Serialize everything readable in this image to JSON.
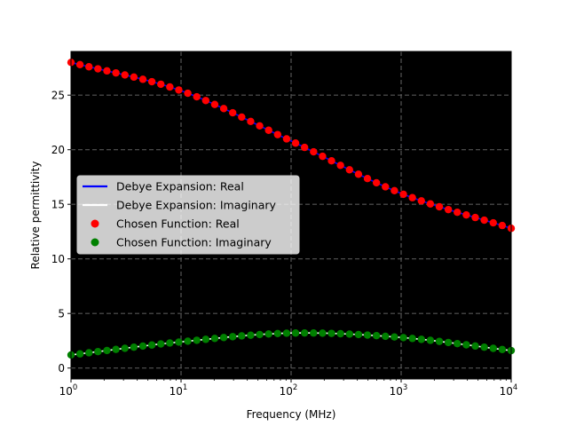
{
  "chart_data": {
    "type": "line",
    "xscale": "log",
    "xlabel": "Frequency (MHz)",
    "ylabel": "Relative permittivity",
    "xlim": [
      1,
      10000
    ],
    "ylim": [
      -1,
      29
    ],
    "plot_background": "#000000",
    "grid": true,
    "legend_position": "center-left",
    "x_ticks": [
      {
        "value": 1,
        "base": "10",
        "exp": "0"
      },
      {
        "value": 10,
        "base": "10",
        "exp": "1"
      },
      {
        "value": 100,
        "base": "10",
        "exp": "2"
      },
      {
        "value": 1000,
        "base": "10",
        "exp": "3"
      },
      {
        "value": 10000,
        "base": "10",
        "exp": "4"
      }
    ],
    "y_ticks": [
      0,
      5,
      10,
      15,
      20,
      25
    ],
    "legend": [
      {
        "label": "Debye Expansion: Real",
        "kind": "line",
        "color": "#0000ff"
      },
      {
        "label": "Debye Expansion: Imaginary",
        "kind": "line",
        "color": "#ffffff"
      },
      {
        "label": "Chosen Function: Real",
        "kind": "marker",
        "color": "#ff0000"
      },
      {
        "label": "Chosen Function: Imaginary",
        "kind": "marker",
        "color": "#008000"
      }
    ],
    "anchor_x": [
      1,
      10,
      100,
      1000,
      10000
    ],
    "series": [
      {
        "name": "Debye Expansion: Real",
        "kind": "line",
        "color": "#0000ff",
        "anchor_y": [
          28.0,
          25.4,
          20.8,
          16.0,
          12.8
        ]
      },
      {
        "name": "Debye Expansion: Imaginary",
        "kind": "line",
        "color": "#ffffff",
        "anchor_y": [
          1.2,
          2.4,
          3.2,
          2.8,
          1.6
        ]
      },
      {
        "name": "Chosen Function: Real",
        "kind": "marker",
        "color": "#ff0000",
        "anchor_y": [
          28.0,
          25.4,
          20.8,
          16.0,
          12.8
        ]
      },
      {
        "name": "Chosen Function: Imaginary",
        "kind": "marker",
        "color": "#008000",
        "anchor_y": [
          1.2,
          2.4,
          3.2,
          2.8,
          1.6
        ]
      }
    ],
    "marker_count": 50
  }
}
